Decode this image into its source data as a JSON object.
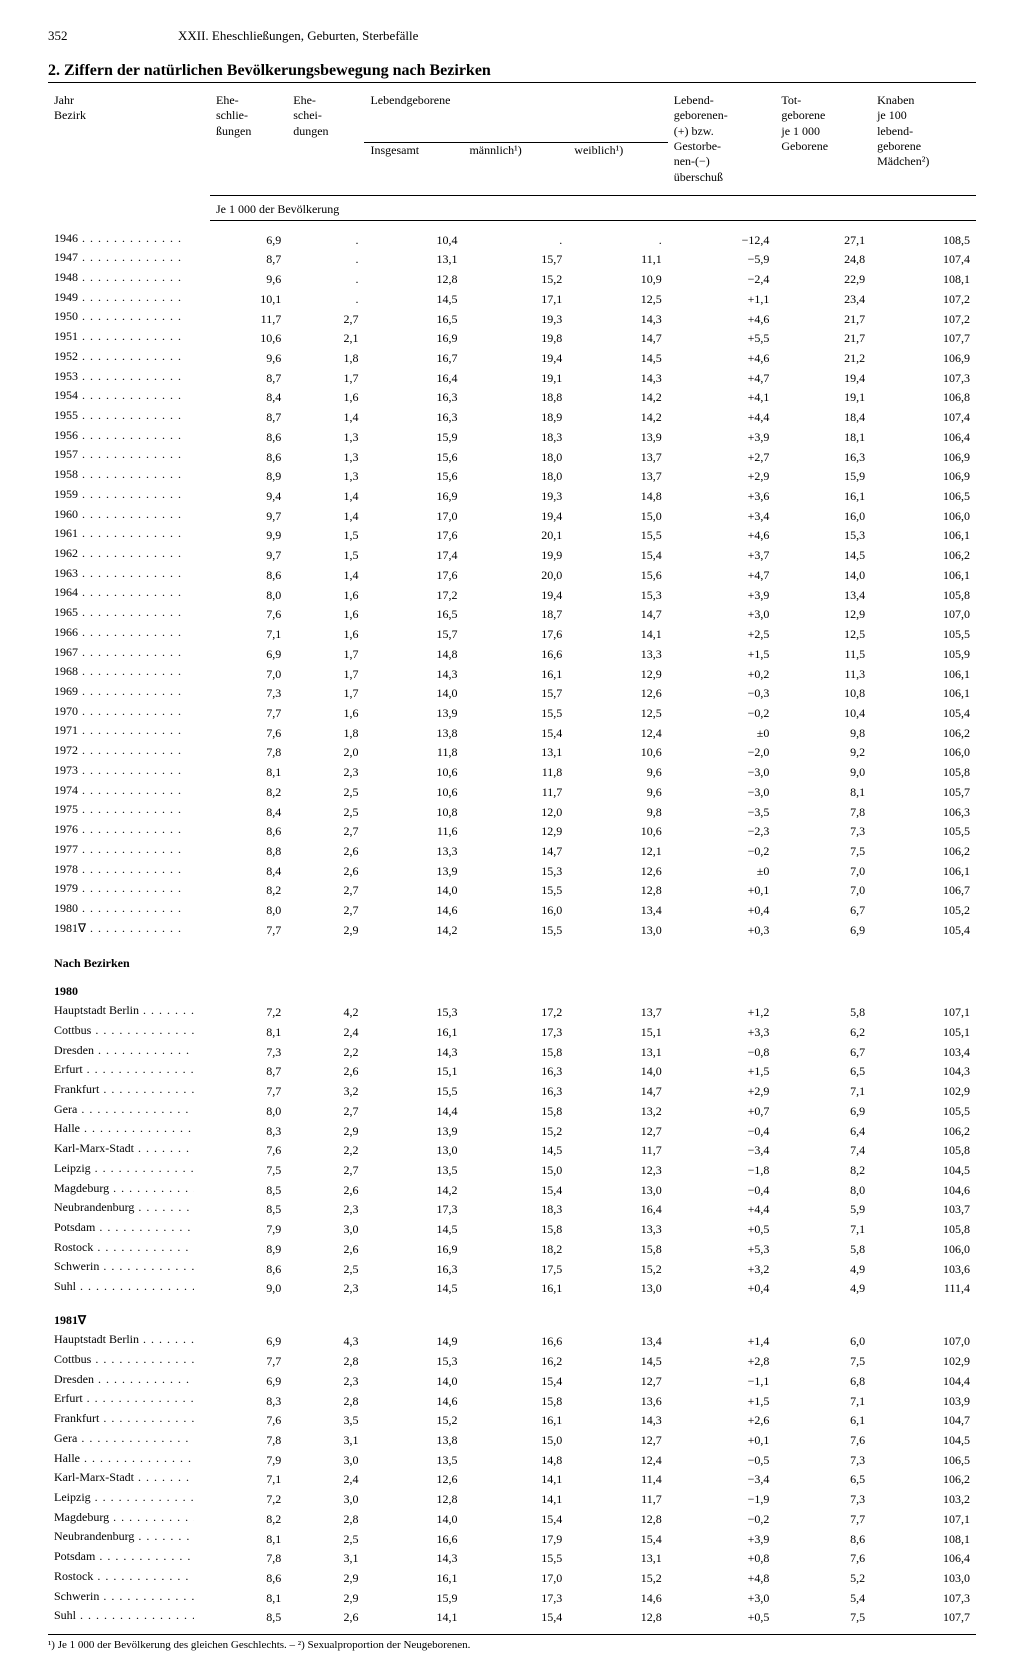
{
  "page_number": "352",
  "chapter": "XXII. Eheschließungen, Geburten, Sterbefälle",
  "title": "2. Ziffern der natürlichen Bevölkerungsbewegung nach Bezirken",
  "headers": {
    "jahr": "Jahr",
    "bezirk": "Bezirk",
    "ehe_schl": "Ehe-\nschlie-\nßungen",
    "ehe_scheid": "Ehe-\nschei-\ndungen",
    "lebend": "Lebendgeborene",
    "insgesamt": "Insgesamt",
    "maennlich": "männlich¹)",
    "weiblich": "weiblich¹)",
    "ueberschuss": "Lebend-\ngeborenen-\n(+) bzw.\nGestorbe-\nnen-(−)\nüberschuß",
    "totgeb": "Tot-\ngeborene\nje 1 000\nGeborene",
    "knaben": "Knaben\nje 100\nlebend-\ngeborene\nMädchen²)",
    "sub": "Je 1 000 der Bevölkerung"
  },
  "section_bezirke": "Nach Bezirken",
  "year_1980": "1980",
  "year_1981": "1981∇",
  "years": [
    {
      "y": "1946",
      "a": "6,9",
      "b": ".",
      "c": "10,4",
      "d": ".",
      "e": ".",
      "f": "−12,4",
      "g": "27,1",
      "h": "108,5"
    },
    {
      "y": "1947",
      "a": "8,7",
      "b": ".",
      "c": "13,1",
      "d": "15,7",
      "e": "11,1",
      "f": "−5,9",
      "g": "24,8",
      "h": "107,4"
    },
    {
      "y": "1948",
      "a": "9,6",
      "b": ".",
      "c": "12,8",
      "d": "15,2",
      "e": "10,9",
      "f": "−2,4",
      "g": "22,9",
      "h": "108,1"
    },
    {
      "y": "1949",
      "a": "10,1",
      "b": ".",
      "c": "14,5",
      "d": "17,1",
      "e": "12,5",
      "f": "+1,1",
      "g": "23,4",
      "h": "107,2"
    },
    {
      "y": "1950",
      "a": "11,7",
      "b": "2,7",
      "c": "16,5",
      "d": "19,3",
      "e": "14,3",
      "f": "+4,6",
      "g": "21,7",
      "h": "107,2"
    },
    {
      "y": "1951",
      "a": "10,6",
      "b": "2,1",
      "c": "16,9",
      "d": "19,8",
      "e": "14,7",
      "f": "+5,5",
      "g": "21,7",
      "h": "107,7"
    },
    {
      "y": "1952",
      "a": "9,6",
      "b": "1,8",
      "c": "16,7",
      "d": "19,4",
      "e": "14,5",
      "f": "+4,6",
      "g": "21,2",
      "h": "106,9"
    },
    {
      "y": "1953",
      "a": "8,7",
      "b": "1,7",
      "c": "16,4",
      "d": "19,1",
      "e": "14,3",
      "f": "+4,7",
      "g": "19,4",
      "h": "107,3"
    },
    {
      "y": "1954",
      "a": "8,4",
      "b": "1,6",
      "c": "16,3",
      "d": "18,8",
      "e": "14,2",
      "f": "+4,1",
      "g": "19,1",
      "h": "106,8"
    },
    {
      "y": "1955",
      "a": "8,7",
      "b": "1,4",
      "c": "16,3",
      "d": "18,9",
      "e": "14,2",
      "f": "+4,4",
      "g": "18,4",
      "h": "107,4"
    },
    {
      "y": "1956",
      "a": "8,6",
      "b": "1,3",
      "c": "15,9",
      "d": "18,3",
      "e": "13,9",
      "f": "+3,9",
      "g": "18,1",
      "h": "106,4"
    },
    {
      "y": "1957",
      "a": "8,6",
      "b": "1,3",
      "c": "15,6",
      "d": "18,0",
      "e": "13,7",
      "f": "+2,7",
      "g": "16,3",
      "h": "106,9"
    },
    {
      "y": "1958",
      "a": "8,9",
      "b": "1,3",
      "c": "15,6",
      "d": "18,0",
      "e": "13,7",
      "f": "+2,9",
      "g": "15,9",
      "h": "106,9"
    },
    {
      "y": "1959",
      "a": "9,4",
      "b": "1,4",
      "c": "16,9",
      "d": "19,3",
      "e": "14,8",
      "f": "+3,6",
      "g": "16,1",
      "h": "106,5"
    },
    {
      "y": "1960",
      "a": "9,7",
      "b": "1,4",
      "c": "17,0",
      "d": "19,4",
      "e": "15,0",
      "f": "+3,4",
      "g": "16,0",
      "h": "106,0"
    },
    {
      "y": "1961",
      "a": "9,9",
      "b": "1,5",
      "c": "17,6",
      "d": "20,1",
      "e": "15,5",
      "f": "+4,6",
      "g": "15,3",
      "h": "106,1"
    },
    {
      "y": "1962",
      "a": "9,7",
      "b": "1,5",
      "c": "17,4",
      "d": "19,9",
      "e": "15,4",
      "f": "+3,7",
      "g": "14,5",
      "h": "106,2"
    },
    {
      "y": "1963",
      "a": "8,6",
      "b": "1,4",
      "c": "17,6",
      "d": "20,0",
      "e": "15,6",
      "f": "+4,7",
      "g": "14,0",
      "h": "106,1"
    },
    {
      "y": "1964",
      "a": "8,0",
      "b": "1,6",
      "c": "17,2",
      "d": "19,4",
      "e": "15,3",
      "f": "+3,9",
      "g": "13,4",
      "h": "105,8"
    },
    {
      "y": "1965",
      "a": "7,6",
      "b": "1,6",
      "c": "16,5",
      "d": "18,7",
      "e": "14,7",
      "f": "+3,0",
      "g": "12,9",
      "h": "107,0"
    },
    {
      "y": "1966",
      "a": "7,1",
      "b": "1,6",
      "c": "15,7",
      "d": "17,6",
      "e": "14,1",
      "f": "+2,5",
      "g": "12,5",
      "h": "105,5"
    },
    {
      "y": "1967",
      "a": "6,9",
      "b": "1,7",
      "c": "14,8",
      "d": "16,6",
      "e": "13,3",
      "f": "+1,5",
      "g": "11,5",
      "h": "105,9"
    },
    {
      "y": "1968",
      "a": "7,0",
      "b": "1,7",
      "c": "14,3",
      "d": "16,1",
      "e": "12,9",
      "f": "+0,2",
      "g": "11,3",
      "h": "106,1"
    },
    {
      "y": "1969",
      "a": "7,3",
      "b": "1,7",
      "c": "14,0",
      "d": "15,7",
      "e": "12,6",
      "f": "−0,3",
      "g": "10,8",
      "h": "106,1"
    },
    {
      "y": "1970",
      "a": "7,7",
      "b": "1,6",
      "c": "13,9",
      "d": "15,5",
      "e": "12,5",
      "f": "−0,2",
      "g": "10,4",
      "h": "105,4"
    },
    {
      "y": "1971",
      "a": "7,6",
      "b": "1,8",
      "c": "13,8",
      "d": "15,4",
      "e": "12,4",
      "f": "±0",
      "g": "9,8",
      "h": "106,2"
    },
    {
      "y": "1972",
      "a": "7,8",
      "b": "2,0",
      "c": "11,8",
      "d": "13,1",
      "e": "10,6",
      "f": "−2,0",
      "g": "9,2",
      "h": "106,0"
    },
    {
      "y": "1973",
      "a": "8,1",
      "b": "2,3",
      "c": "10,6",
      "d": "11,8",
      "e": "9,6",
      "f": "−3,0",
      "g": "9,0",
      "h": "105,8"
    },
    {
      "y": "1974",
      "a": "8,2",
      "b": "2,5",
      "c": "10,6",
      "d": "11,7",
      "e": "9,6",
      "f": "−3,0",
      "g": "8,1",
      "h": "105,7"
    },
    {
      "y": "1975",
      "a": "8,4",
      "b": "2,5",
      "c": "10,8",
      "d": "12,0",
      "e": "9,8",
      "f": "−3,5",
      "g": "7,8",
      "h": "106,3"
    },
    {
      "y": "1976",
      "a": "8,6",
      "b": "2,7",
      "c": "11,6",
      "d": "12,9",
      "e": "10,6",
      "f": "−2,3",
      "g": "7,3",
      "h": "105,5"
    },
    {
      "y": "1977",
      "a": "8,8",
      "b": "2,6",
      "c": "13,3",
      "d": "14,7",
      "e": "12,1",
      "f": "−0,2",
      "g": "7,5",
      "h": "106,2"
    },
    {
      "y": "1978",
      "a": "8,4",
      "b": "2,6",
      "c": "13,9",
      "d": "15,3",
      "e": "12,6",
      "f": "±0",
      "g": "7,0",
      "h": "106,1"
    },
    {
      "y": "1979",
      "a": "8,2",
      "b": "2,7",
      "c": "14,0",
      "d": "15,5",
      "e": "12,8",
      "f": "+0,1",
      "g": "7,0",
      "h": "106,7"
    },
    {
      "y": "1980",
      "a": "8,0",
      "b": "2,7",
      "c": "14,6",
      "d": "16,0",
      "e": "13,4",
      "f": "+0,4",
      "g": "6,7",
      "h": "105,2"
    },
    {
      "y": "1981∇",
      "a": "7,7",
      "b": "2,9",
      "c": "14,2",
      "d": "15,5",
      "e": "13,0",
      "f": "+0,3",
      "g": "6,9",
      "h": "105,4"
    }
  ],
  "bezirke_1980": [
    {
      "y": "Hauptstadt Berlin",
      "a": "7,2",
      "b": "4,2",
      "c": "15,3",
      "d": "17,2",
      "e": "13,7",
      "f": "+1,2",
      "g": "5,8",
      "h": "107,1"
    },
    {
      "y": "Cottbus",
      "a": "8,1",
      "b": "2,4",
      "c": "16,1",
      "d": "17,3",
      "e": "15,1",
      "f": "+3,3",
      "g": "6,2",
      "h": "105,1"
    },
    {
      "y": "Dresden",
      "a": "7,3",
      "b": "2,2",
      "c": "14,3",
      "d": "15,8",
      "e": "13,1",
      "f": "−0,8",
      "g": "6,7",
      "h": "103,4"
    },
    {
      "y": "Erfurt",
      "a": "8,7",
      "b": "2,6",
      "c": "15,1",
      "d": "16,3",
      "e": "14,0",
      "f": "+1,5",
      "g": "6,5",
      "h": "104,3"
    },
    {
      "y": "Frankfurt",
      "a": "7,7",
      "b": "3,2",
      "c": "15,5",
      "d": "16,3",
      "e": "14,7",
      "f": "+2,9",
      "g": "7,1",
      "h": "102,9"
    },
    {
      "y": "Gera",
      "a": "8,0",
      "b": "2,7",
      "c": "14,4",
      "d": "15,8",
      "e": "13,2",
      "f": "+0,7",
      "g": "6,9",
      "h": "105,5"
    },
    {
      "y": "Halle",
      "a": "8,3",
      "b": "2,9",
      "c": "13,9",
      "d": "15,2",
      "e": "12,7",
      "f": "−0,4",
      "g": "6,4",
      "h": "106,2"
    },
    {
      "y": "Karl-Marx-Stadt",
      "a": "7,6",
      "b": "2,2",
      "c": "13,0",
      "d": "14,5",
      "e": "11,7",
      "f": "−3,4",
      "g": "7,4",
      "h": "105,8"
    },
    {
      "y": "Leipzig",
      "a": "7,5",
      "b": "2,7",
      "c": "13,5",
      "d": "15,0",
      "e": "12,3",
      "f": "−1,8",
      "g": "8,2",
      "h": "104,5"
    },
    {
      "y": "Magdeburg",
      "a": "8,5",
      "b": "2,6",
      "c": "14,2",
      "d": "15,4",
      "e": "13,0",
      "f": "−0,4",
      "g": "8,0",
      "h": "104,6"
    },
    {
      "y": "Neubrandenburg",
      "a": "8,5",
      "b": "2,3",
      "c": "17,3",
      "d": "18,3",
      "e": "16,4",
      "f": "+4,4",
      "g": "5,9",
      "h": "103,7"
    },
    {
      "y": "Potsdam",
      "a": "7,9",
      "b": "3,0",
      "c": "14,5",
      "d": "15,8",
      "e": "13,3",
      "f": "+0,5",
      "g": "7,1",
      "h": "105,8"
    },
    {
      "y": "Rostock",
      "a": "8,9",
      "b": "2,6",
      "c": "16,9",
      "d": "18,2",
      "e": "15,8",
      "f": "+5,3",
      "g": "5,8",
      "h": "106,0"
    },
    {
      "y": "Schwerin",
      "a": "8,6",
      "b": "2,5",
      "c": "16,3",
      "d": "17,5",
      "e": "15,2",
      "f": "+3,2",
      "g": "4,9",
      "h": "103,6"
    },
    {
      "y": "Suhl",
      "a": "9,0",
      "b": "2,3",
      "c": "14,5",
      "d": "16,1",
      "e": "13,0",
      "f": "+0,4",
      "g": "4,9",
      "h": "111,4"
    }
  ],
  "bezirke_1981": [
    {
      "y": "Hauptstadt Berlin",
      "a": "6,9",
      "b": "4,3",
      "c": "14,9",
      "d": "16,6",
      "e": "13,4",
      "f": "+1,4",
      "g": "6,0",
      "h": "107,0"
    },
    {
      "y": "Cottbus",
      "a": "7,7",
      "b": "2,8",
      "c": "15,3",
      "d": "16,2",
      "e": "14,5",
      "f": "+2,8",
      "g": "7,5",
      "h": "102,9"
    },
    {
      "y": "Dresden",
      "a": "6,9",
      "b": "2,3",
      "c": "14,0",
      "d": "15,4",
      "e": "12,7",
      "f": "−1,1",
      "g": "6,8",
      "h": "104,4"
    },
    {
      "y": "Erfurt",
      "a": "8,3",
      "b": "2,8",
      "c": "14,6",
      "d": "15,8",
      "e": "13,6",
      "f": "+1,5",
      "g": "7,1",
      "h": "103,9"
    },
    {
      "y": "Frankfurt",
      "a": "7,6",
      "b": "3,5",
      "c": "15,2",
      "d": "16,1",
      "e": "14,3",
      "f": "+2,6",
      "g": "6,1",
      "h": "104,7"
    },
    {
      "y": "Gera",
      "a": "7,8",
      "b": "3,1",
      "c": "13,8",
      "d": "15,0",
      "e": "12,7",
      "f": "+0,1",
      "g": "7,6",
      "h": "104,5"
    },
    {
      "y": "Halle",
      "a": "7,9",
      "b": "3,0",
      "c": "13,5",
      "d": "14,8",
      "e": "12,4",
      "f": "−0,5",
      "g": "7,3",
      "h": "106,5"
    },
    {
      "y": "Karl-Marx-Stadt",
      "a": "7,1",
      "b": "2,4",
      "c": "12,6",
      "d": "14,1",
      "e": "11,4",
      "f": "−3,4",
      "g": "6,5",
      "h": "106,2"
    },
    {
      "y": "Leipzig",
      "a": "7,2",
      "b": "3,0",
      "c": "12,8",
      "d": "14,1",
      "e": "11,7",
      "f": "−1,9",
      "g": "7,3",
      "h": "103,2"
    },
    {
      "y": "Magdeburg",
      "a": "8,2",
      "b": "2,8",
      "c": "14,0",
      "d": "15,4",
      "e": "12,8",
      "f": "−0,2",
      "g": "7,7",
      "h": "107,1"
    },
    {
      "y": "Neubrandenburg",
      "a": "8,1",
      "b": "2,5",
      "c": "16,6",
      "d": "17,9",
      "e": "15,4",
      "f": "+3,9",
      "g": "8,6",
      "h": "108,1"
    },
    {
      "y": "Potsdam",
      "a": "7,8",
      "b": "3,1",
      "c": "14,3",
      "d": "15,5",
      "e": "13,1",
      "f": "+0,8",
      "g": "7,6",
      "h": "106,4"
    },
    {
      "y": "Rostock",
      "a": "8,6",
      "b": "2,9",
      "c": "16,1",
      "d": "17,0",
      "e": "15,2",
      "f": "+4,8",
      "g": "5,2",
      "h": "103,0"
    },
    {
      "y": "Schwerin",
      "a": "8,1",
      "b": "2,9",
      "c": "15,9",
      "d": "17,3",
      "e": "14,6",
      "f": "+3,0",
      "g": "5,4",
      "h": "107,3"
    },
    {
      "y": "Suhl",
      "a": "8,5",
      "b": "2,6",
      "c": "14,1",
      "d": "15,4",
      "e": "12,8",
      "f": "+0,5",
      "g": "7,5",
      "h": "107,7"
    }
  ],
  "footnote": "¹) Je 1 000 der Bevölkerung des gleichen Geschlechts. – ²) Sexualproportion der Neugeborenen."
}
